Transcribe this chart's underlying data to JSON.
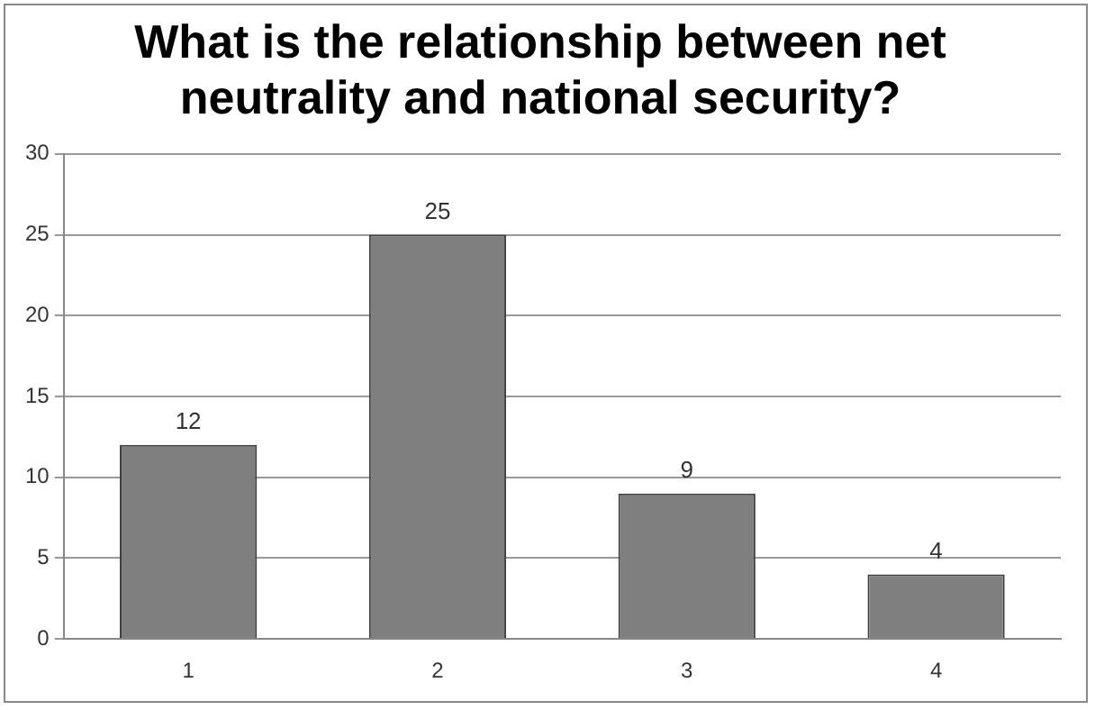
{
  "chart_data": {
    "type": "bar",
    "title": "What is the relationship between net neutrality and national security?",
    "categories": [
      "1",
      "2",
      "3",
      "4"
    ],
    "values": [
      12,
      25,
      9,
      4
    ],
    "color": "#7f7f7f",
    "ylim": [
      0,
      30
    ],
    "yticks": [
      0,
      5,
      10,
      15,
      20,
      25,
      30
    ],
    "grid": "y",
    "legend": false,
    "data_labels": true
  }
}
